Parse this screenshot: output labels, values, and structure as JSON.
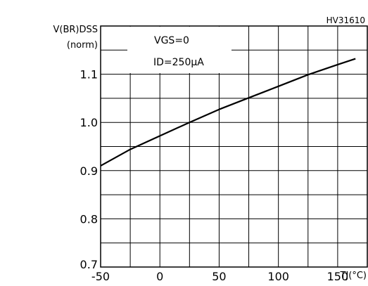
{
  "chart_data": {
    "type": "line",
    "code": "HV31610",
    "ylabel": "V(BR)DSS",
    "ylabel_unit": "(norm)",
    "xlabel": "TJ(°C)",
    "xlim": [
      -50,
      175
    ],
    "ylim": [
      0.7,
      1.2
    ],
    "x_ticks": [
      "-50",
      "0",
      "50",
      "100",
      "150"
    ],
    "x_tick_values": [
      -50,
      0,
      50,
      100,
      150
    ],
    "y_ticks": [
      "0.7",
      "0.8",
      "0.9",
      "1.0",
      "1.1"
    ],
    "y_tick_values": [
      0.7,
      0.8,
      0.9,
      1.0,
      1.1
    ],
    "grid": true,
    "annotations": {
      "vgs": "VGS=0",
      "id": "ID=250μA"
    },
    "series": [
      {
        "x": [
          -50,
          -25,
          0,
          25,
          50,
          75,
          100,
          125,
          150,
          165
        ],
        "y": [
          0.91,
          0.944,
          0.972,
          1.0,
          1.027,
          1.051,
          1.075,
          1.099,
          1.12,
          1.132
        ]
      }
    ]
  }
}
